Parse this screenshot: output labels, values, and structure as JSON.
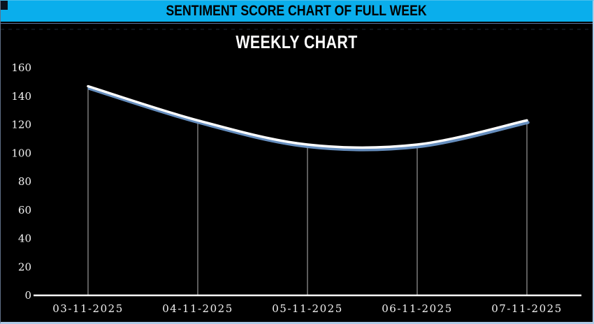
{
  "header": {
    "title": "SENTIMENT SCORE CHART OF FULL WEEK",
    "background_color": "#0aaeec",
    "text_color": "#000000"
  },
  "chart_data": {
    "type": "line",
    "title": "WEEKLY CHART",
    "categories": [
      "03-11-2025",
      "04-11-2025",
      "05-11-2025",
      "06-11-2025",
      "07-11-2025"
    ],
    "values": [
      147,
      123,
      106,
      106,
      123
    ],
    "xlabel": "",
    "ylabel": "",
    "ylim": [
      0,
      160
    ],
    "y_ticks": [
      0,
      20,
      40,
      60,
      80,
      100,
      120,
      140,
      160
    ],
    "grid": false,
    "legend": false,
    "smooth": true,
    "drop_lines": true,
    "colors": {
      "background": "#000000",
      "title_text": "#ffffff",
      "axis_text": "#f2f2f2",
      "axis_line": "#ffffff",
      "drop_line": "#b8b8b8",
      "line": "#ffffff",
      "line_shadow": "#6c96c8",
      "faint_dashed_line": "#1d2733",
      "frame_border": "#aecbe8"
    }
  }
}
